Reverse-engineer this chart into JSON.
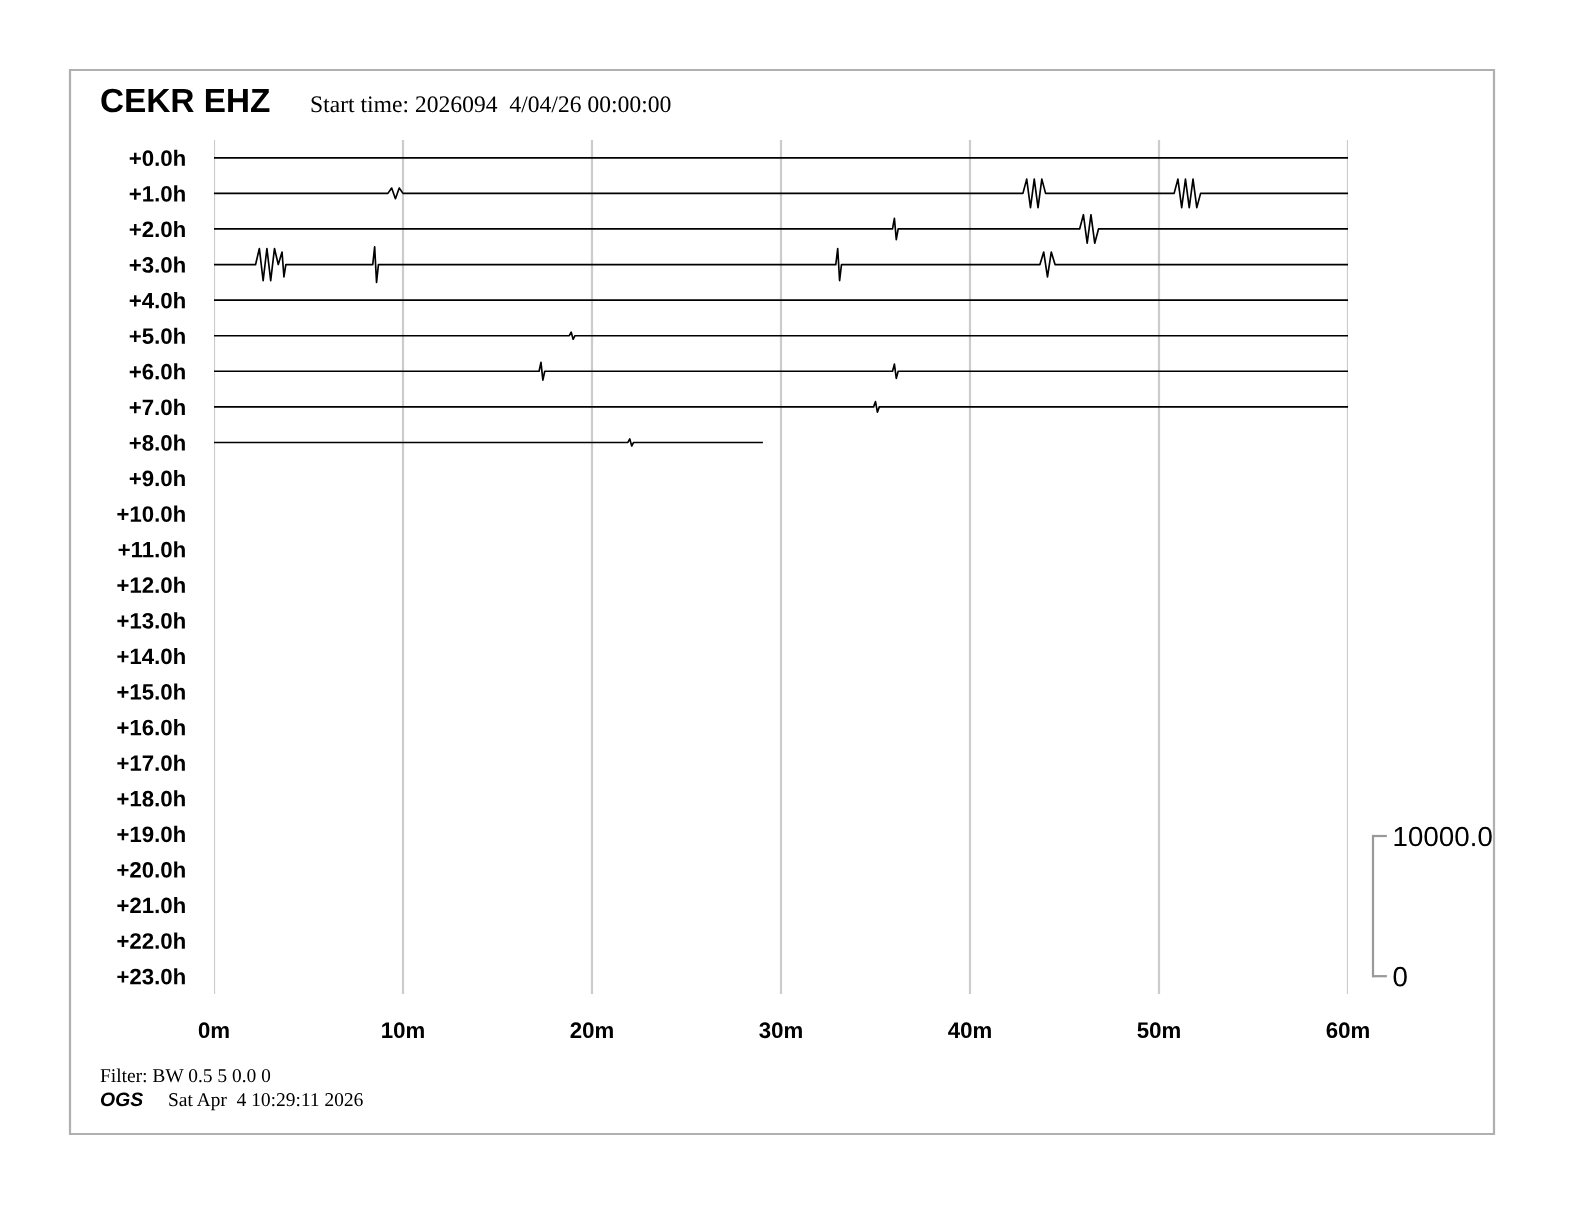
{
  "chart_data": {
    "type": "line",
    "title": "CEKR EHZ",
    "subtitle": "Start time: 2026094  4/04/26 00:00:00",
    "annotations": [
      "Filter: BW 0.5 5 0.0 0",
      "OGS",
      "Sat Apr  4 10:29:11 2026"
    ],
    "xlim": [
      0,
      60
    ],
    "xticks": [
      {
        "value": 0,
        "label": "0m"
      },
      {
        "value": 10,
        "label": "10m"
      },
      {
        "value": 20,
        "label": "20m"
      },
      {
        "value": 30,
        "label": "30m"
      },
      {
        "value": 40,
        "label": "40m"
      },
      {
        "value": 50,
        "label": "50m"
      },
      {
        "value": 60,
        "label": "60m"
      }
    ],
    "ylim": [
      23.5,
      -0.5
    ],
    "yticks": [
      {
        "value": 0,
        "label": "+0.0h"
      },
      {
        "value": 1,
        "label": "+1.0h"
      },
      {
        "value": 2,
        "label": "+2.0h"
      },
      {
        "value": 3,
        "label": "+3.0h"
      },
      {
        "value": 4,
        "label": "+4.0h"
      },
      {
        "value": 5,
        "label": "+5.0h"
      },
      {
        "value": 6,
        "label": "+6.0h"
      },
      {
        "value": 7,
        "label": "+7.0h"
      },
      {
        "value": 8,
        "label": "+8.0h"
      },
      {
        "value": 9,
        "label": "+9.0h"
      },
      {
        "value": 10,
        "label": "+10.0h"
      },
      {
        "value": 11,
        "label": "+11.0h"
      },
      {
        "value": 12,
        "label": "+12.0h"
      },
      {
        "value": 13,
        "label": "+13.0h"
      },
      {
        "value": 14,
        "label": "+14.0h"
      },
      {
        "value": 15,
        "label": "+15.0h"
      },
      {
        "value": 16,
        "label": "+16.0h"
      },
      {
        "value": 17,
        "label": "+17.0h"
      },
      {
        "value": 18,
        "label": "+18.0h"
      },
      {
        "value": 19,
        "label": "+19.0h"
      },
      {
        "value": 20,
        "label": "+20.0h"
      },
      {
        "value": 21,
        "label": "+21.0h"
      },
      {
        "value": 22,
        "label": "+22.0h"
      },
      {
        "value": 23,
        "label": "+23.0h"
      }
    ],
    "y2lim": [
      -1270,
      59650
    ],
    "y2ticks": [
      0,
      {
        "value": 10000,
        "label": "10000.0"
      }
    ],
    "grid": "x",
    "legend": false,
    "series": [
      {
        "color": "#000000",
        "x": [
          0,
          60
        ],
        "values": [
          0,
          0
        ]
      },
      {
        "color": "#000000",
        "x": [
          0,
          9.2,
          9.4,
          9.6,
          9.8,
          10,
          42.8,
          43.0,
          43.2,
          43.4,
          43.6,
          43.8,
          44.0,
          50.8,
          51.0,
          51.2,
          51.4,
          51.6,
          51.8,
          52.0,
          52.2,
          60
        ],
        "values": [
          1,
          1,
          0.85,
          1.15,
          0.85,
          1,
          1,
          0.6,
          1.4,
          0.6,
          1.4,
          0.6,
          1,
          1,
          0.6,
          1.4,
          0.6,
          1.4,
          0.6,
          1.4,
          1,
          1
        ]
      },
      {
        "color": "#000000",
        "x": [
          0,
          35.9,
          36.0,
          36.1,
          36.2,
          45.8,
          46.0,
          46.2,
          46.4,
          46.6,
          46.8,
          60
        ],
        "values": [
          2,
          2,
          1.7,
          2.3,
          2,
          2,
          1.6,
          2.4,
          1.6,
          2.4,
          2,
          2
        ]
      },
      {
        "color": "#000000",
        "x": [
          0,
          2.2,
          2.4,
          2.6,
          2.8,
          3.0,
          3.2,
          3.4,
          3.6,
          3.7,
          3.8,
          8.4,
          8.5,
          8.6,
          8.7,
          32.9,
          33.0,
          33.1,
          33.2,
          43.7,
          43.9,
          44.1,
          44.3,
          44.5,
          60
        ],
        "values": [
          3,
          3,
          2.55,
          3.45,
          2.55,
          3.45,
          2.55,
          3,
          2.65,
          3.35,
          3,
          3,
          2.5,
          3.5,
          3,
          3,
          2.55,
          3.45,
          3,
          3,
          2.65,
          3.35,
          2.65,
          3,
          3
        ]
      },
      {
        "color": "#000000",
        "x": [
          0,
          60
        ],
        "values": [
          4,
          4
        ]
      },
      {
        "color": "#000000",
        "x": [
          0,
          18.8,
          18.9,
          19.0,
          19.1,
          60
        ],
        "values": [
          5,
          5,
          4.9,
          5.1,
          5,
          5
        ]
      },
      {
        "color": "#000000",
        "x": [
          0,
          17.2,
          17.3,
          17.4,
          17.5,
          35.9,
          36.0,
          36.1,
          36.2,
          60
        ],
        "values": [
          6,
          6,
          5.75,
          6.25,
          6,
          6,
          5.8,
          6.2,
          6,
          6
        ]
      },
      {
        "color": "#000000",
        "x": [
          0,
          34.9,
          35.0,
          35.1,
          35.2,
          60
        ],
        "values": [
          7,
          7,
          6.85,
          7.15,
          7,
          7
        ]
      },
      {
        "color": "#000000",
        "x": [
          0,
          21.9,
          22.0,
          22.1,
          22.2,
          29.0
        ],
        "values": [
          8,
          8,
          7.9,
          8.1,
          8,
          8
        ]
      }
    ]
  }
}
